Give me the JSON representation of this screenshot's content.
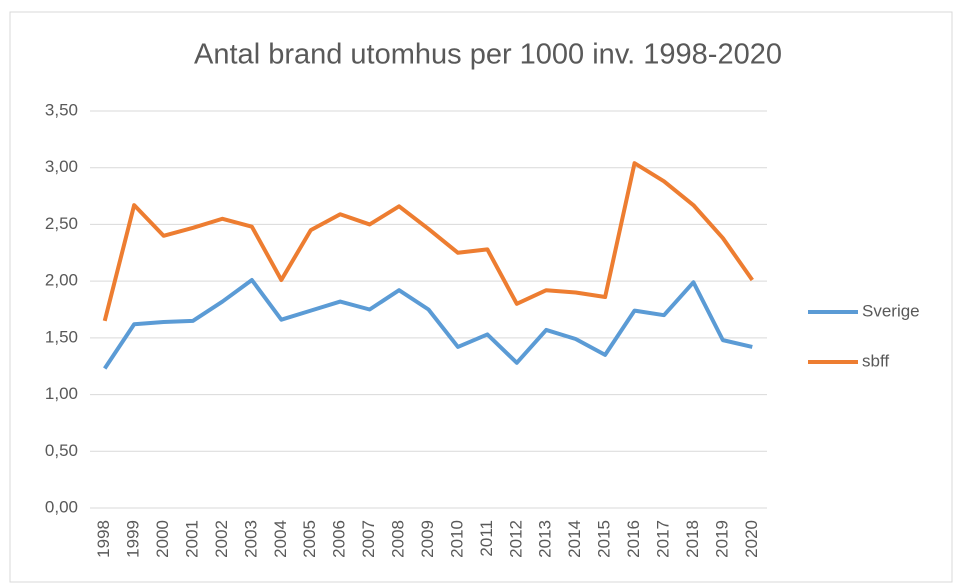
{
  "chart_data": {
    "type": "line",
    "title": "Antal brand utomhus per 1000 inv. 1998-2020",
    "categories": [
      "1998",
      "1999",
      "2000",
      "2001",
      "2002",
      "2003",
      "2004",
      "2005",
      "2006",
      "2007",
      "2008",
      "2009",
      "2010",
      "2011",
      "2012",
      "2013",
      "2014",
      "2015",
      "2016",
      "2017",
      "2018",
      "2019",
      "2020"
    ],
    "series": [
      {
        "name": "Sverige",
        "color": "#5b9bd5",
        "values": [
          1.23,
          1.62,
          1.64,
          1.65,
          1.82,
          2.01,
          1.66,
          1.74,
          1.82,
          1.75,
          1.92,
          1.75,
          1.42,
          1.53,
          1.28,
          1.57,
          1.49,
          1.35,
          1.74,
          1.7,
          1.99,
          1.48,
          1.42
        ]
      },
      {
        "name": "sbff",
        "color": "#ed7d31",
        "values": [
          1.65,
          2.67,
          2.4,
          2.47,
          2.55,
          2.48,
          2.01,
          2.45,
          2.59,
          2.5,
          2.66,
          2.46,
          2.25,
          2.28,
          1.8,
          1.92,
          1.9,
          1.86,
          3.04,
          2.88,
          2.67,
          2.38,
          2.01
        ]
      }
    ],
    "ylim": [
      0,
      3.5
    ],
    "yticks": [
      {
        "value": 0,
        "label": "0,00"
      },
      {
        "value": 0.5,
        "label": "0,50"
      },
      {
        "value": 1,
        "label": "1,00"
      },
      {
        "value": 1.5,
        "label": "1,50"
      },
      {
        "value": 2,
        "label": "2,00"
      },
      {
        "value": 2.5,
        "label": "2,50"
      },
      {
        "value": 3,
        "label": "3,00"
      },
      {
        "value": 3.5,
        "label": "3,50"
      }
    ],
    "grid": true,
    "legend": "right"
  }
}
